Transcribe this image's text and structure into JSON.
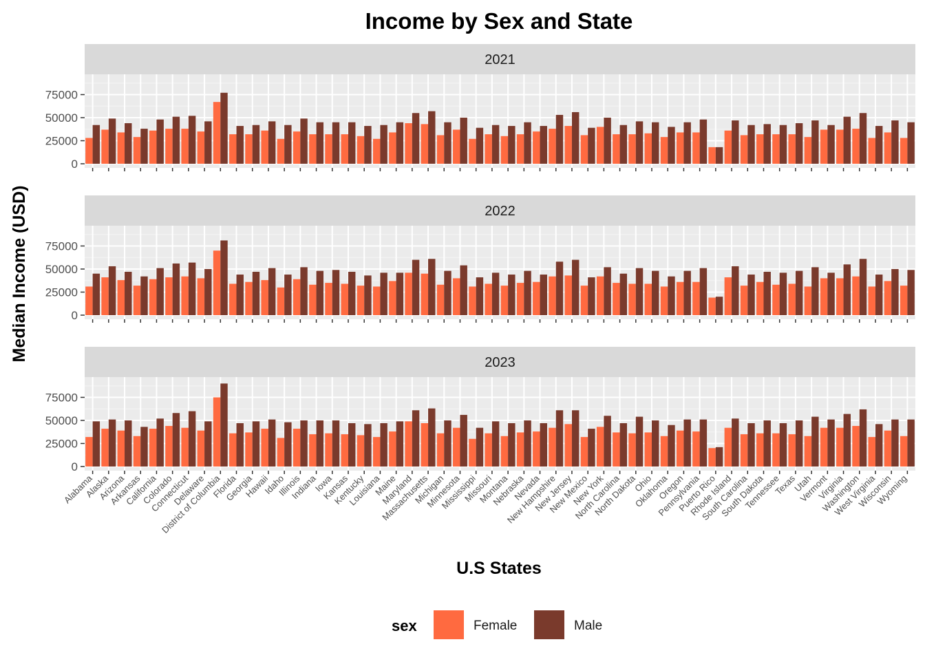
{
  "chart_data": {
    "type": "bar",
    "title": "Income by Sex and State",
    "xlabel": "U.S States",
    "ylabel": "Median Income (USD)",
    "ylim": [
      0,
      97000
    ],
    "yticks": [
      0,
      25000,
      50000,
      75000
    ],
    "ytick_labels": [
      "0",
      "25000",
      "50000",
      "75000"
    ],
    "legend": {
      "title": "sex",
      "position": "bottom",
      "entries": [
        {
          "label": "Female",
          "color": "#FF6A40"
        },
        {
          "label": "Male",
          "color": "#7A3A2C"
        }
      ]
    },
    "colors": {
      "Female": "#FF6A40",
      "Male": "#7A3A2C",
      "panel_bg": "#EBEBEB",
      "strip_bg": "#D9D9D9"
    },
    "categories": [
      "Alabama",
      "Alaska",
      "Arizona",
      "Arkansas",
      "California",
      "Colorado",
      "Connecticut",
      "Delaware",
      "District of Columbia",
      "Florida",
      "Georgia",
      "Hawaii",
      "Idaho",
      "Illinois",
      "Indiana",
      "Iowa",
      "Kansas",
      "Kentucky",
      "Louisiana",
      "Maine",
      "Maryland",
      "Massachusetts",
      "Michigan",
      "Minnesota",
      "Mississippi",
      "Missouri",
      "Montana",
      "Nebraska",
      "Nevada",
      "New Hampshire",
      "New Jersey",
      "New Mexico",
      "New York",
      "North Carolina",
      "North Dakota",
      "Ohio",
      "Oklahoma",
      "Oregon",
      "Pennsylvania",
      "Puerto Rico",
      "Rhode Island",
      "South Carolina",
      "South Dakota",
      "Tennessee",
      "Texas",
      "Utah",
      "Vermont",
      "Virginia",
      "Washington",
      "West Virginia",
      "Wisconsin",
      "Wyoming"
    ],
    "panels": [
      {
        "label": "2021",
        "series": [
          {
            "name": "Female",
            "values": [
              28000,
              37000,
              34000,
              29000,
              36000,
              38000,
              38000,
              35000,
              67000,
              32000,
              32000,
              36000,
              27000,
              35000,
              32000,
              32000,
              32000,
              30000,
              27000,
              34000,
              44000,
              43000,
              31000,
              37000,
              27000,
              32000,
              30000,
              32000,
              35000,
              38000,
              41000,
              31000,
              40000,
              32000,
              32000,
              33000,
              29000,
              34000,
              34000,
              18000,
              36000,
              31000,
              32000,
              32000,
              32000,
              29000,
              37000,
              37000,
              38000,
              28000,
              34000,
              28000
            ]
          },
          {
            "name": "Male",
            "values": [
              42000,
              49000,
              44000,
              38000,
              48000,
              51000,
              52000,
              46000,
              77000,
              41000,
              42000,
              46000,
              42000,
              49000,
              45000,
              45000,
              45000,
              41000,
              42000,
              45000,
              55000,
              57000,
              45000,
              50000,
              39000,
              42000,
              41000,
              45000,
              41000,
              53000,
              56000,
              39000,
              50000,
              42000,
              46000,
              45000,
              40000,
              45000,
              48000,
              18000,
              47000,
              42000,
              43000,
              42000,
              44000,
              47000,
              42000,
              51000,
              55000,
              41000,
              47000,
              45000
            ]
          }
        ]
      },
      {
        "label": "2022",
        "series": [
          {
            "name": "Female",
            "values": [
              31000,
              41000,
              38000,
              32000,
              39000,
              41000,
              42000,
              40000,
              70000,
              34000,
              36000,
              38000,
              30000,
              39000,
              33000,
              35000,
              34000,
              32000,
              31000,
              37000,
              46000,
              45000,
              33000,
              40000,
              31000,
              34000,
              32000,
              35000,
              36000,
              42000,
              43000,
              32000,
              42000,
              35000,
              34000,
              34000,
              31000,
              36000,
              36000,
              19000,
              41000,
              32000,
              36000,
              33000,
              34000,
              31000,
              40000,
              40000,
              42000,
              31000,
              37000,
              32000
            ]
          },
          {
            "name": "Male",
            "values": [
              45000,
              53000,
              47000,
              42000,
              51000,
              56000,
              57000,
              50000,
              81000,
              44000,
              47000,
              51000,
              44000,
              52000,
              48000,
              49000,
              47000,
              43000,
              46000,
              46000,
              60000,
              61000,
              48000,
              54000,
              41000,
              46000,
              44000,
              48000,
              44000,
              58000,
              60000,
              41000,
              52000,
              45000,
              51000,
              48000,
              42000,
              48000,
              51000,
              20000,
              53000,
              44000,
              47000,
              46000,
              48000,
              52000,
              46000,
              55000,
              61000,
              44000,
              50000,
              49000
            ]
          }
        ]
      },
      {
        "label": "2023",
        "series": [
          {
            "name": "Female",
            "values": [
              32000,
              41000,
              39000,
              33000,
              41000,
              44000,
              42000,
              39000,
              75000,
              36000,
              37000,
              41000,
              31000,
              41000,
              35000,
              36000,
              35000,
              34000,
              32000,
              38000,
              49000,
              47000,
              36000,
              42000,
              30000,
              36000,
              33000,
              37000,
              38000,
              42000,
              46000,
              32000,
              43000,
              37000,
              36000,
              37000,
              33000,
              39000,
              38000,
              20000,
              42000,
              35000,
              36000,
              36000,
              35000,
              33000,
              42000,
              42000,
              44000,
              32000,
              39000,
              33000
            ]
          },
          {
            "name": "Male",
            "values": [
              49000,
              51000,
              50000,
              43000,
              52000,
              58000,
              60000,
              49000,
              90000,
              47000,
              49000,
              51000,
              48000,
              50000,
              50000,
              50000,
              47000,
              46000,
              47000,
              49000,
              61000,
              63000,
              50000,
              56000,
              42000,
              49000,
              47000,
              50000,
              47000,
              61000,
              61000,
              41000,
              55000,
              47000,
              54000,
              50000,
              45000,
              51000,
              51000,
              21000,
              52000,
              47000,
              50000,
              47000,
              50000,
              54000,
              51000,
              57000,
              62000,
              46000,
              51000,
              51000
            ]
          }
        ]
      }
    ]
  }
}
